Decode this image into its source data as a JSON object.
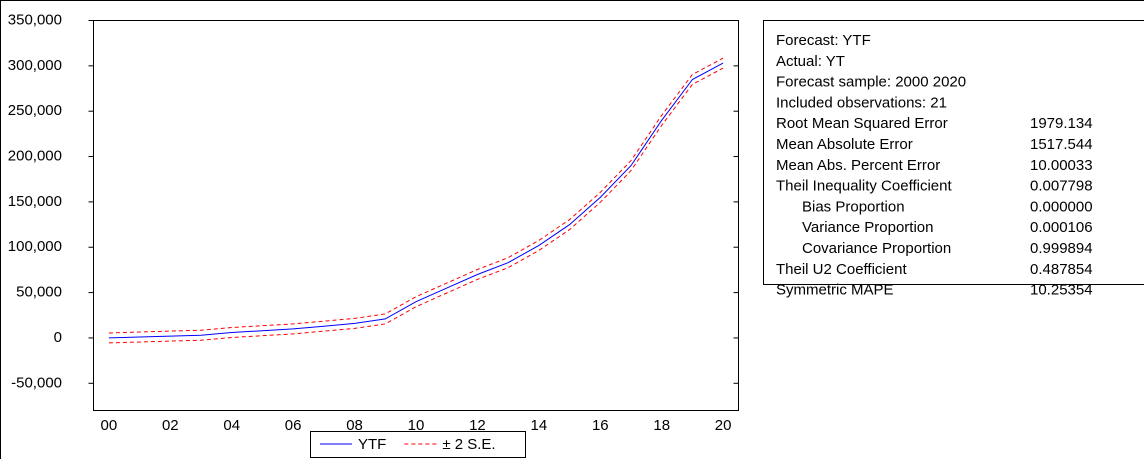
{
  "chart_data": {
    "type": "line",
    "categories": [
      "00",
      null,
      "02",
      null,
      "04",
      null,
      "06",
      null,
      "08",
      null,
      "10",
      null,
      "12",
      null,
      "14",
      null,
      "16",
      null,
      "18",
      null,
      "20"
    ],
    "series": [
      {
        "name": "YTF",
        "color": "#0000ff",
        "values": [
          0,
          1000,
          2000,
          3000,
          6000,
          8000,
          10000,
          13000,
          16000,
          21000,
          40000,
          55000,
          70000,
          83000,
          102000,
          125000,
          155000,
          190000,
          240000,
          285000,
          303000
        ]
      },
      {
        "name": "± 2 S.E.",
        "color": "#ff0000",
        "dashed": true,
        "upper": [
          5500,
          6500,
          7500,
          8500,
          11500,
          13500,
          15500,
          18500,
          21500,
          26500,
          45500,
          60500,
          75500,
          88500,
          107500,
          130500,
          160500,
          195500,
          245500,
          290500,
          308500
        ],
        "lower": [
          -5500,
          -4500,
          -3500,
          -2500,
          500,
          2500,
          4500,
          7500,
          10500,
          15500,
          34500,
          49500,
          64500,
          77500,
          96500,
          119500,
          149500,
          184500,
          234500,
          279500,
          297500
        ]
      }
    ],
    "ylim": [
      -80000,
      350000
    ],
    "yticks": [
      {
        "value": -50000,
        "label": "-50,000"
      },
      0,
      {
        "value": 50000,
        "label": "50,000"
      },
      {
        "value": 100000,
        "label": "100,000"
      },
      {
        "value": 150000,
        "label": "150,000"
      },
      {
        "value": 200000,
        "label": "200,000"
      },
      {
        "value": 250000,
        "label": "250,000"
      },
      {
        "value": 300000,
        "label": "300,000"
      },
      {
        "value": 350000,
        "label": "350,000"
      }
    ],
    "legend": "bottom"
  },
  "stats": {
    "lines": [
      "Forecast: YTF",
      "Actual: YT",
      "Forecast sample: 2000 2020",
      "Included observations: 21"
    ],
    "rows": [
      {
        "label": "Root Mean Squared Error",
        "value": "1979.134"
      },
      {
        "label": "Mean Absolute Error",
        "value": "1517.544"
      },
      {
        "label": "Mean Abs. Percent Error",
        "value": "10.00033"
      },
      {
        "label": "Theil Inequality Coefficient",
        "value": "0.007798"
      },
      {
        "label": "Bias Proportion",
        "value": "0.000000",
        "indent": true
      },
      {
        "label": "Variance Proportion",
        "value": "0.000106",
        "indent": true
      },
      {
        "label": "Covariance Proportion",
        "value": "0.999894",
        "indent": true
      },
      {
        "label": "Theil U2 Coefficient",
        "value": "0.487854"
      },
      {
        "label": "Symmetric MAPE",
        "value": "10.25354"
      }
    ]
  }
}
